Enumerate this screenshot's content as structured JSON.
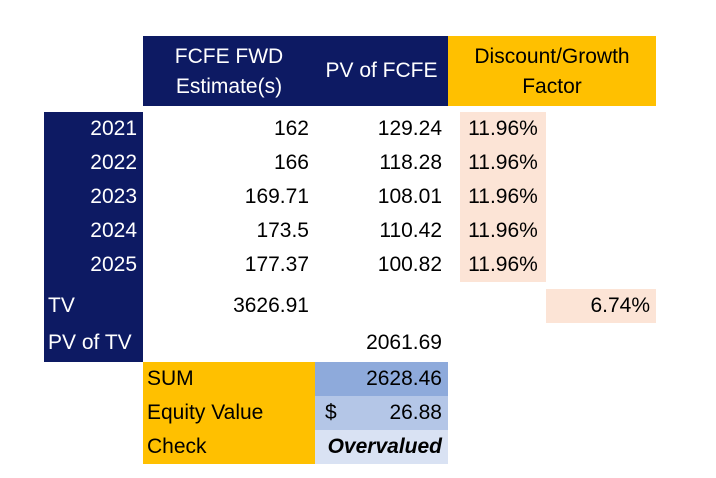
{
  "headers": {
    "fcfe_fwd_line1": "FCFE FWD",
    "fcfe_fwd_line2": "Estimate(s)",
    "pv_fcfe": "PV of FCFE",
    "discount_line1": "Discount/Growth",
    "discount_line2": "Factor"
  },
  "rows": [
    {
      "year": "2021",
      "fcfe": "162",
      "pv": "129.24",
      "rate": "11.96%"
    },
    {
      "year": "2022",
      "fcfe": "166",
      "pv": "118.28",
      "rate": "11.96%"
    },
    {
      "year": "2023",
      "fcfe": "169.71",
      "pv": "108.01",
      "rate": "11.96%"
    },
    {
      "year": "2024",
      "fcfe": "173.5",
      "pv": "110.42",
      "rate": "11.96%"
    },
    {
      "year": "2025",
      "fcfe": "177.37",
      "pv": "100.82",
      "rate": "11.96%"
    }
  ],
  "tv": {
    "label": "TV",
    "value": "3626.91",
    "growth": "6.74%"
  },
  "pv_tv": {
    "label": "PV of TV",
    "value": "2061.69"
  },
  "summary": {
    "sum_label": "SUM",
    "sum_value": "2628.46",
    "equity_label": "Equity Value",
    "equity_currency": "$",
    "equity_value": "26.88",
    "check_label": "Check",
    "check_value": "Overvalued"
  },
  "colors": {
    "navy": "#0d1a63",
    "gold": "#ffc000",
    "peach": "#fce4d6",
    "sum_blue": "#8eaadb",
    "equity_blue": "#b4c6e7",
    "check_blue": "#d9e2f3"
  }
}
